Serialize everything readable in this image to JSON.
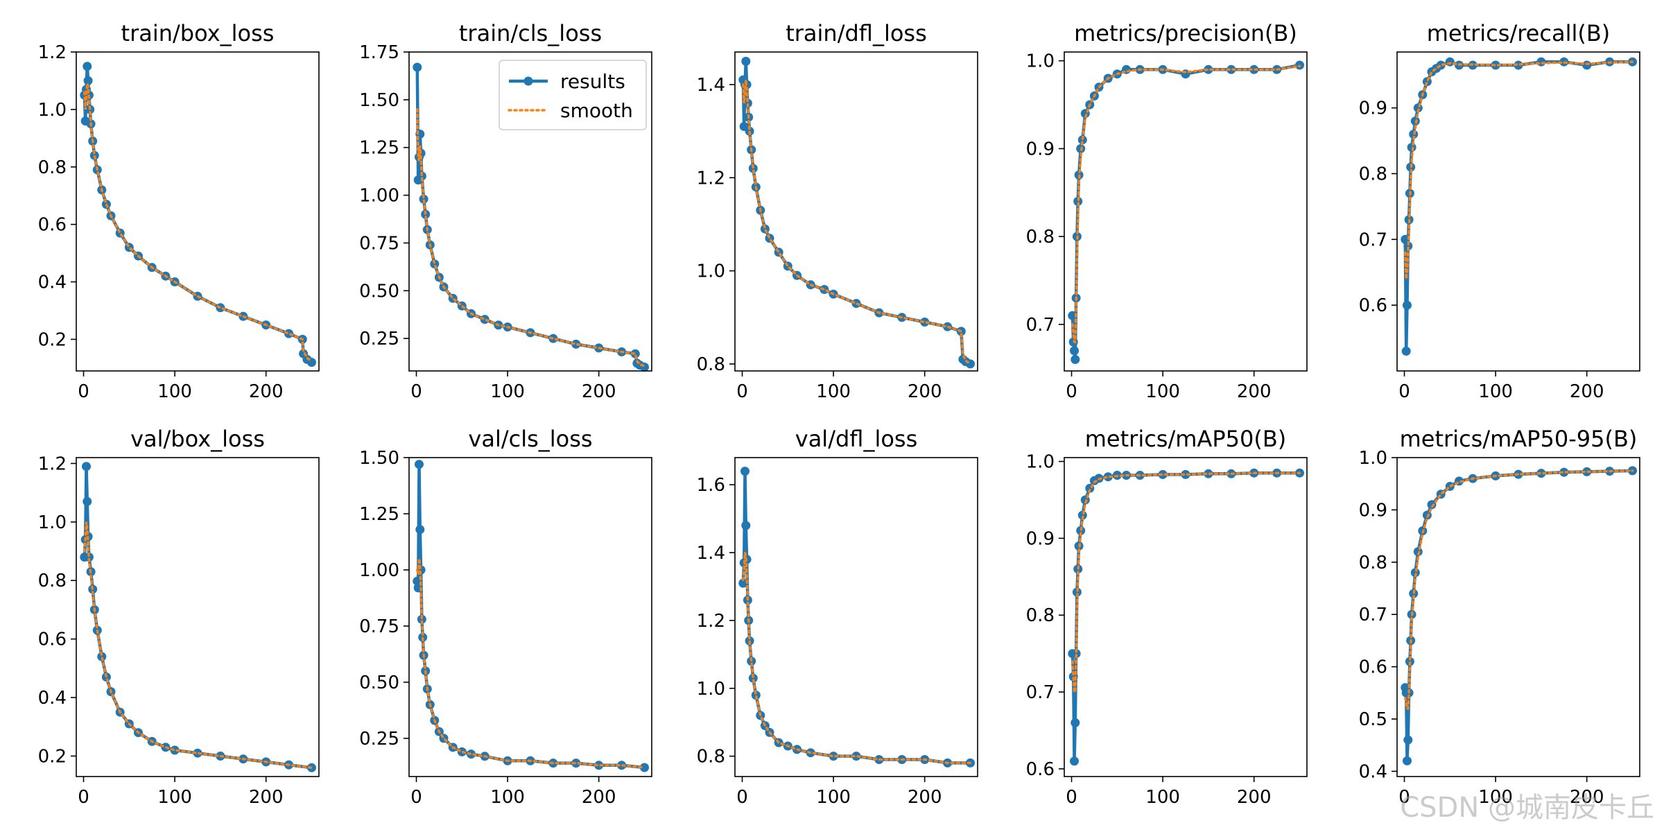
{
  "watermark": "CSDN @城南皮卡丘",
  "legend": {
    "results_label": "results",
    "smooth_label": "smooth"
  },
  "colors": {
    "results": "#1f77b4",
    "smooth": "#ff7f0e",
    "axis": "#000000"
  },
  "chart_data": [
    {
      "type": "line",
      "title": "train/box_loss",
      "xlim": [
        -8,
        258
      ],
      "ylim": [
        0.09,
        1.2
      ],
      "xticks": [
        0,
        100,
        200
      ],
      "xtick_labels": [
        "0",
        "100",
        "200"
      ],
      "yticks": [
        0.2,
        0.4,
        0.6,
        0.8,
        1.0,
        1.2
      ],
      "ytick_labels": [
        "0.2",
        "0.4",
        "0.6",
        "0.8",
        "1.0",
        "1.2"
      ],
      "x": [
        1,
        2,
        3,
        4,
        5,
        6,
        7,
        8,
        10,
        12,
        15,
        20,
        25,
        30,
        40,
        50,
        60,
        75,
        90,
        100,
        125,
        150,
        175,
        200,
        225,
        240,
        241,
        245,
        250
      ],
      "y": [
        1.05,
        0.96,
        1.07,
        1.15,
        1.1,
        1.05,
        1.0,
        0.95,
        0.89,
        0.84,
        0.79,
        0.72,
        0.67,
        0.63,
        0.57,
        0.52,
        0.49,
        0.45,
        0.42,
        0.4,
        0.35,
        0.31,
        0.28,
        0.25,
        0.22,
        0.2,
        0.15,
        0.13,
        0.12
      ],
      "smooth": [
        1.06,
        1.0,
        1.04,
        1.09,
        1.08,
        1.04,
        1.0,
        0.95,
        0.89,
        0.84,
        0.79,
        0.72,
        0.67,
        0.63,
        0.57,
        0.52,
        0.49,
        0.45,
        0.42,
        0.4,
        0.35,
        0.31,
        0.28,
        0.25,
        0.22,
        0.2,
        0.16,
        0.135,
        0.125
      ]
    },
    {
      "type": "line",
      "title": "train/cls_loss",
      "xlim": [
        -8,
        258
      ],
      "ylim": [
        0.08,
        1.75
      ],
      "xticks": [
        0,
        100,
        200
      ],
      "xtick_labels": [
        "0",
        "100",
        "200"
      ],
      "yticks": [
        0.25,
        0.5,
        0.75,
        1.0,
        1.25,
        1.5,
        1.75
      ],
      "ytick_labels": [
        "0.25",
        "0.50",
        "0.75",
        "1.00",
        "1.25",
        "1.50",
        "1.75"
      ],
      "x": [
        1,
        2,
        3,
        4,
        5,
        6,
        8,
        10,
        12,
        15,
        20,
        25,
        30,
        40,
        50,
        60,
        75,
        90,
        100,
        125,
        150,
        175,
        200,
        225,
        240,
        242,
        245,
        250
      ],
      "y": [
        1.67,
        1.08,
        1.2,
        1.32,
        1.22,
        1.1,
        0.98,
        0.9,
        0.82,
        0.74,
        0.64,
        0.57,
        0.52,
        0.46,
        0.42,
        0.38,
        0.35,
        0.32,
        0.31,
        0.28,
        0.25,
        0.22,
        0.2,
        0.18,
        0.17,
        0.12,
        0.11,
        0.1
      ],
      "smooth": [
        1.45,
        1.2,
        1.18,
        1.26,
        1.2,
        1.1,
        0.98,
        0.9,
        0.82,
        0.74,
        0.64,
        0.57,
        0.52,
        0.46,
        0.42,
        0.38,
        0.35,
        0.32,
        0.31,
        0.28,
        0.25,
        0.22,
        0.2,
        0.18,
        0.17,
        0.13,
        0.115,
        0.105
      ]
    },
    {
      "type": "line",
      "title": "train/dfl_loss",
      "xlim": [
        -8,
        258
      ],
      "ylim": [
        0.785,
        1.47
      ],
      "xticks": [
        0,
        100,
        200
      ],
      "xtick_labels": [
        "0",
        "100",
        "200"
      ],
      "yticks": [
        0.8,
        1.0,
        1.2,
        1.4
      ],
      "ytick_labels": [
        "0.8",
        "1.0",
        "1.2",
        "1.4"
      ],
      "x": [
        1,
        2,
        3,
        4,
        5,
        6,
        7,
        8,
        10,
        12,
        15,
        20,
        25,
        30,
        40,
        50,
        60,
        75,
        90,
        100,
        125,
        150,
        175,
        200,
        225,
        240,
        242,
        245,
        250
      ],
      "y": [
        1.41,
        1.31,
        1.4,
        1.45,
        1.4,
        1.36,
        1.33,
        1.3,
        1.26,
        1.22,
        1.18,
        1.13,
        1.09,
        1.07,
        1.04,
        1.01,
        0.99,
        0.97,
        0.96,
        0.95,
        0.93,
        0.91,
        0.9,
        0.89,
        0.88,
        0.87,
        0.81,
        0.805,
        0.8
      ],
      "smooth": [
        1.4,
        1.36,
        1.38,
        1.41,
        1.39,
        1.36,
        1.33,
        1.3,
        1.26,
        1.22,
        1.18,
        1.13,
        1.09,
        1.07,
        1.04,
        1.01,
        0.99,
        0.97,
        0.96,
        0.95,
        0.93,
        0.91,
        0.9,
        0.89,
        0.88,
        0.87,
        0.82,
        0.807,
        0.8
      ]
    },
    {
      "type": "line",
      "title": "metrics/precision(B)",
      "xlim": [
        -8,
        258
      ],
      "ylim": [
        0.647,
        1.01
      ],
      "xticks": [
        0,
        100,
        200
      ],
      "xtick_labels": [
        "0",
        "100",
        "200"
      ],
      "yticks": [
        0.7,
        0.8,
        0.9,
        1.0
      ],
      "ytick_labels": [
        "0.7",
        "0.8",
        "0.9",
        "1.0"
      ],
      "x": [
        1,
        2,
        3,
        4,
        5,
        6,
        7,
        8,
        10,
        12,
        15,
        20,
        25,
        30,
        40,
        50,
        60,
        75,
        100,
        125,
        150,
        175,
        200,
        225,
        250
      ],
      "y": [
        0.71,
        0.68,
        0.67,
        0.66,
        0.73,
        0.8,
        0.84,
        0.87,
        0.9,
        0.91,
        0.94,
        0.95,
        0.96,
        0.97,
        0.98,
        0.985,
        0.99,
        0.99,
        0.99,
        0.985,
        0.99,
        0.99,
        0.99,
        0.99,
        0.995
      ],
      "smooth": [
        0.7,
        0.69,
        0.68,
        0.68,
        0.72,
        0.78,
        0.82,
        0.86,
        0.89,
        0.91,
        0.935,
        0.95,
        0.96,
        0.97,
        0.98,
        0.985,
        0.988,
        0.99,
        0.99,
        0.987,
        0.99,
        0.99,
        0.99,
        0.99,
        0.994
      ]
    },
    {
      "type": "line",
      "title": "metrics/recall(B)",
      "xlim": [
        -8,
        258
      ],
      "ylim": [
        0.5,
        0.985
      ],
      "xticks": [
        0,
        100,
        200
      ],
      "xtick_labels": [
        "0",
        "100",
        "200"
      ],
      "yticks": [
        0.6,
        0.7,
        0.8,
        0.9
      ],
      "ytick_labels": [
        "0.6",
        "0.7",
        "0.8",
        "0.9"
      ],
      "x": [
        1,
        2,
        3,
        4,
        5,
        6,
        7,
        8,
        10,
        12,
        15,
        20,
        25,
        30,
        35,
        40,
        50,
        60,
        75,
        100,
        125,
        150,
        175,
        200,
        225,
        250
      ],
      "y": [
        0.7,
        0.53,
        0.6,
        0.69,
        0.73,
        0.77,
        0.81,
        0.84,
        0.86,
        0.88,
        0.9,
        0.92,
        0.94,
        0.955,
        0.96,
        0.965,
        0.97,
        0.965,
        0.965,
        0.965,
        0.965,
        0.97,
        0.97,
        0.965,
        0.97,
        0.97
      ],
      "smooth": [
        0.68,
        0.64,
        0.65,
        0.68,
        0.71,
        0.75,
        0.79,
        0.82,
        0.85,
        0.87,
        0.895,
        0.92,
        0.94,
        0.955,
        0.96,
        0.965,
        0.968,
        0.966,
        0.966,
        0.965,
        0.966,
        0.968,
        0.969,
        0.967,
        0.969,
        0.97
      ]
    },
    {
      "type": "line",
      "title": "val/box_loss",
      "xlim": [
        -8,
        258
      ],
      "ylim": [
        0.13,
        1.22
      ],
      "xticks": [
        0,
        100,
        200
      ],
      "xtick_labels": [
        "0",
        "100",
        "200"
      ],
      "yticks": [
        0.2,
        0.4,
        0.6,
        0.8,
        1.0,
        1.2
      ],
      "ytick_labels": [
        "0.2",
        "0.4",
        "0.6",
        "0.8",
        "1.0",
        "1.2"
      ],
      "x": [
        1,
        2,
        3,
        4,
        5,
        6,
        8,
        10,
        12,
        15,
        20,
        25,
        30,
        40,
        50,
        60,
        75,
        90,
        100,
        125,
        150,
        175,
        200,
        225,
        250
      ],
      "y": [
        0.88,
        0.94,
        1.19,
        1.07,
        0.95,
        0.88,
        0.83,
        0.77,
        0.7,
        0.63,
        0.54,
        0.47,
        0.42,
        0.35,
        0.31,
        0.28,
        0.25,
        0.23,
        0.22,
        0.21,
        0.2,
        0.19,
        0.18,
        0.17,
        0.16
      ],
      "smooth": [
        0.9,
        0.94,
        1.0,
        0.98,
        0.93,
        0.87,
        0.82,
        0.76,
        0.7,
        0.63,
        0.54,
        0.47,
        0.42,
        0.35,
        0.31,
        0.28,
        0.25,
        0.23,
        0.22,
        0.21,
        0.2,
        0.19,
        0.18,
        0.17,
        0.16
      ]
    },
    {
      "type": "line",
      "title": "val/cls_loss",
      "xlim": [
        -8,
        258
      ],
      "ylim": [
        0.08,
        1.5
      ],
      "xticks": [
        0,
        100,
        200
      ],
      "xtick_labels": [
        "0",
        "100",
        "200"
      ],
      "yticks": [
        0.25,
        0.5,
        0.75,
        1.0,
        1.25,
        1.5
      ],
      "ytick_labels": [
        "0.25",
        "0.50",
        "0.75",
        "1.00",
        "1.25",
        "1.50"
      ],
      "x": [
        1,
        2,
        3,
        4,
        5,
        6,
        7,
        8,
        10,
        12,
        15,
        20,
        25,
        30,
        40,
        50,
        60,
        75,
        100,
        125,
        150,
        175,
        200,
        225,
        250
      ],
      "y": [
        0.95,
        0.92,
        1.47,
        1.18,
        1.0,
        0.78,
        0.7,
        0.62,
        0.55,
        0.47,
        0.4,
        0.33,
        0.28,
        0.25,
        0.21,
        0.19,
        0.18,
        0.17,
        0.15,
        0.15,
        0.14,
        0.14,
        0.13,
        0.13,
        0.12
      ],
      "smooth": [
        1.0,
        0.98,
        1.05,
        1.02,
        0.92,
        0.78,
        0.7,
        0.62,
        0.55,
        0.47,
        0.4,
        0.33,
        0.28,
        0.25,
        0.21,
        0.19,
        0.18,
        0.17,
        0.15,
        0.15,
        0.14,
        0.14,
        0.13,
        0.13,
        0.12
      ]
    },
    {
      "type": "line",
      "title": "val/dfl_loss",
      "xlim": [
        -8,
        258
      ],
      "ylim": [
        0.74,
        1.68
      ],
      "xticks": [
        0,
        100,
        200
      ],
      "xtick_labels": [
        "0",
        "100",
        "200"
      ],
      "yticks": [
        0.8,
        1.0,
        1.2,
        1.4,
        1.6
      ],
      "ytick_labels": [
        "0.8",
        "1.0",
        "1.2",
        "1.4",
        "1.6"
      ],
      "x": [
        1,
        2,
        3,
        4,
        5,
        6,
        7,
        8,
        10,
        12,
        15,
        20,
        25,
        30,
        40,
        50,
        60,
        75,
        100,
        125,
        150,
        175,
        200,
        225,
        250
      ],
      "y": [
        1.31,
        1.37,
        1.64,
        1.48,
        1.38,
        1.26,
        1.2,
        1.14,
        1.08,
        1.03,
        0.98,
        0.92,
        0.89,
        0.87,
        0.84,
        0.83,
        0.82,
        0.81,
        0.8,
        0.8,
        0.79,
        0.79,
        0.79,
        0.78,
        0.78
      ],
      "smooth": [
        1.32,
        1.35,
        1.4,
        1.39,
        1.34,
        1.26,
        1.2,
        1.14,
        1.08,
        1.03,
        0.98,
        0.92,
        0.89,
        0.87,
        0.84,
        0.83,
        0.82,
        0.81,
        0.8,
        0.8,
        0.79,
        0.79,
        0.79,
        0.78,
        0.78
      ]
    },
    {
      "type": "line",
      "title": "metrics/mAP50(B)",
      "xlim": [
        -8,
        258
      ],
      "ylim": [
        0.59,
        1.005
      ],
      "xticks": [
        0,
        100,
        200
      ],
      "xtick_labels": [
        "0",
        "100",
        "200"
      ],
      "yticks": [
        0.6,
        0.7,
        0.8,
        0.9,
        1.0
      ],
      "ytick_labels": [
        "0.6",
        "0.7",
        "0.8",
        "0.9",
        "1.0"
      ],
      "x": [
        1,
        2,
        3,
        4,
        5,
        6,
        7,
        8,
        10,
        12,
        15,
        20,
        25,
        30,
        40,
        50,
        60,
        75,
        100,
        125,
        150,
        175,
        200,
        225,
        250
      ],
      "y": [
        0.75,
        0.72,
        0.61,
        0.66,
        0.75,
        0.83,
        0.86,
        0.89,
        0.91,
        0.93,
        0.95,
        0.965,
        0.975,
        0.978,
        0.98,
        0.982,
        0.982,
        0.982,
        0.983,
        0.983,
        0.984,
        0.984,
        0.985,
        0.985,
        0.985
      ],
      "smooth": [
        0.74,
        0.72,
        0.7,
        0.7,
        0.74,
        0.81,
        0.85,
        0.88,
        0.905,
        0.925,
        0.945,
        0.963,
        0.973,
        0.977,
        0.98,
        0.981,
        0.982,
        0.982,
        0.983,
        0.983,
        0.984,
        0.984,
        0.985,
        0.985,
        0.985
      ]
    },
    {
      "type": "line",
      "title": "metrics/mAP50-95(B)",
      "xlim": [
        -8,
        258
      ],
      "ylim": [
        0.39,
        1.0
      ],
      "xticks": [
        0,
        100,
        200
      ],
      "xtick_labels": [
        "0",
        "100",
        "200"
      ],
      "yticks": [
        0.4,
        0.5,
        0.6,
        0.7,
        0.8,
        0.9,
        1.0
      ],
      "ytick_labels": [
        "0.4",
        "0.5",
        "0.6",
        "0.7",
        "0.8",
        "0.9",
        "1.0"
      ],
      "x": [
        1,
        2,
        3,
        4,
        5,
        6,
        7,
        8,
        10,
        12,
        15,
        20,
        25,
        30,
        40,
        50,
        60,
        75,
        100,
        125,
        150,
        175,
        200,
        225,
        250
      ],
      "y": [
        0.56,
        0.55,
        0.42,
        0.46,
        0.55,
        0.61,
        0.65,
        0.7,
        0.74,
        0.78,
        0.82,
        0.86,
        0.89,
        0.91,
        0.93,
        0.945,
        0.955,
        0.96,
        0.965,
        0.968,
        0.97,
        0.972,
        0.973,
        0.974,
        0.975
      ],
      "smooth": [
        0.54,
        0.53,
        0.52,
        0.52,
        0.55,
        0.6,
        0.64,
        0.69,
        0.73,
        0.77,
        0.81,
        0.855,
        0.885,
        0.905,
        0.93,
        0.945,
        0.953,
        0.96,
        0.965,
        0.968,
        0.97,
        0.972,
        0.973,
        0.974,
        0.975
      ]
    }
  ]
}
